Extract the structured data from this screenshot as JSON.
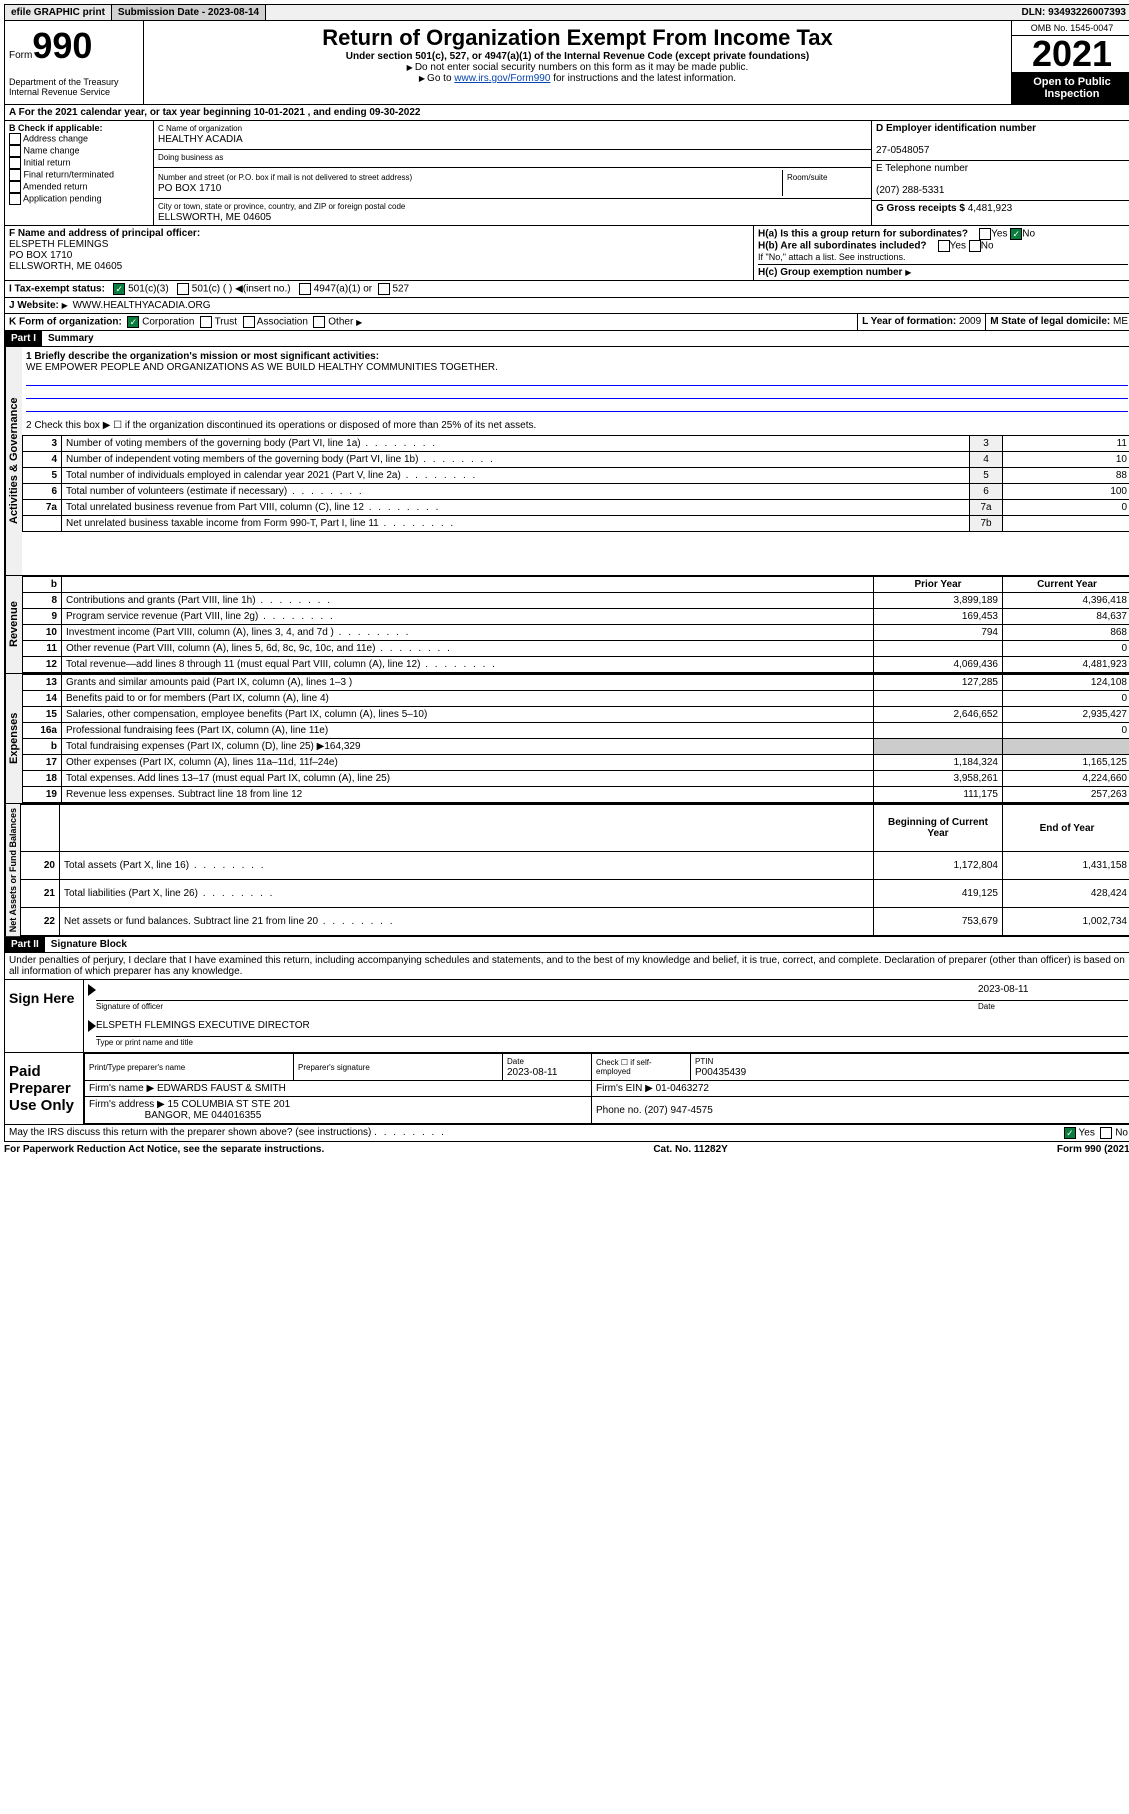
{
  "top_bar": {
    "efile": "efile GRAPHIC print",
    "submission_label": "Submission Date - 2023-08-14",
    "dln": "DLN: 93493226007393"
  },
  "header": {
    "form_prefix": "Form",
    "form_number": "990",
    "dept": "Department of the Treasury Internal Revenue Service",
    "title": "Return of Organization Exempt From Income Tax",
    "subtitle": "Under section 501(c), 527, or 4947(a)(1) of the Internal Revenue Code (except private foundations)",
    "note1": "Do not enter social security numbers on this form as it may be made public.",
    "note2_pre": "Go to ",
    "note2_link": "www.irs.gov/Form990",
    "note2_post": " for instructions and the latest information.",
    "omb": "OMB No. 1545-0047",
    "year": "2021",
    "open": "Open to Public Inspection"
  },
  "line_a": "For the 2021 calendar year, or tax year beginning 10-01-2021   , and ending 09-30-2022",
  "section_b": {
    "label": "B Check if applicable:",
    "items": [
      "Address change",
      "Name change",
      "Initial return",
      "Final return/terminated",
      "Amended return",
      "Application pending"
    ]
  },
  "section_c": {
    "name_label": "C Name of organization",
    "name": "HEALTHY ACADIA",
    "dba_label": "Doing business as",
    "addr_label": "Number and street (or P.O. box if mail is not delivered to street address)",
    "room_label": "Room/suite",
    "addr": "PO BOX 1710",
    "city_label": "City or town, state or province, country, and ZIP or foreign postal code",
    "city": "ELLSWORTH, ME  04605"
  },
  "section_d": {
    "ein_label": "D Employer identification number",
    "ein": "27-0548057",
    "phone_label": "E Telephone number",
    "phone": "(207) 288-5331",
    "gross_label": "G Gross receipts $",
    "gross": "4,481,923"
  },
  "section_f": {
    "label": "F  Name and address of principal officer:",
    "name": "ELSPETH FLEMINGS",
    "addr1": "PO BOX 1710",
    "addr2": "ELLSWORTH, ME  04605"
  },
  "section_h": {
    "a_label": "H(a)  Is this a group return for subordinates?",
    "yes": "Yes",
    "no": "No",
    "b_label": "H(b)  Are all subordinates included?",
    "b_note": "If \"No,\" attach a list. See instructions.",
    "c_label": "H(c)  Group exemption number"
  },
  "section_i": {
    "label": "I   Tax-exempt status:",
    "opts": [
      "501(c)(3)",
      "501(c) (  )",
      "(insert no.)",
      "4947(a)(1) or",
      "527"
    ]
  },
  "section_j": {
    "label": "J   Website:",
    "value": "WWW.HEALTHYACADIA.ORG"
  },
  "section_k": {
    "label": "K Form of organization:",
    "opts": [
      "Corporation",
      "Trust",
      "Association",
      "Other"
    ]
  },
  "section_l": {
    "label": "L Year of formation:",
    "value": "2009"
  },
  "section_m": {
    "label": "M State of legal domicile:",
    "value": "ME"
  },
  "part1": {
    "header": "Part I",
    "title": "Summary",
    "line1_label": "1  Briefly describe the organization's mission or most significant activities:",
    "line1_value": "WE EMPOWER PEOPLE AND ORGANIZATIONS AS WE BUILD HEALTHY COMMUNITIES TOGETHER.",
    "line2": "2   Check this box ▶ ☐  if the organization discontinued its operations or disposed of more than 25% of its net assets.",
    "vert_labels": [
      "Activities & Governance",
      "Revenue",
      "Expenses",
      "Net Assets or Fund Balances"
    ],
    "gov_rows": [
      {
        "n": "3",
        "t": "Number of voting members of the governing body (Part VI, line 1a)",
        "ln": "3",
        "v": "11"
      },
      {
        "n": "4",
        "t": "Number of independent voting members of the governing body (Part VI, line 1b)",
        "ln": "4",
        "v": "10"
      },
      {
        "n": "5",
        "t": "Total number of individuals employed in calendar year 2021 (Part V, line 2a)",
        "ln": "5",
        "v": "88"
      },
      {
        "n": "6",
        "t": "Total number of volunteers (estimate if necessary)",
        "ln": "6",
        "v": "100"
      },
      {
        "n": "7a",
        "t": "Total unrelated business revenue from Part VIII, column (C), line 12",
        "ln": "7a",
        "v": "0"
      },
      {
        "n": "",
        "t": "Net unrelated business taxable income from Form 990-T, Part I, line 11",
        "ln": "7b",
        "v": ""
      }
    ],
    "col_headers": {
      "b": "b",
      "prior": "Prior Year",
      "current": "Current Year"
    },
    "rev_rows": [
      {
        "n": "8",
        "t": "Contributions and grants (Part VIII, line 1h)",
        "p": "3,899,189",
        "c": "4,396,418"
      },
      {
        "n": "9",
        "t": "Program service revenue (Part VIII, line 2g)",
        "p": "169,453",
        "c": "84,637"
      },
      {
        "n": "10",
        "t": "Investment income (Part VIII, column (A), lines 3, 4, and 7d )",
        "p": "794",
        "c": "868"
      },
      {
        "n": "11",
        "t": "Other revenue (Part VIII, column (A), lines 5, 6d, 8c, 9c, 10c, and 11e)",
        "p": "",
        "c": "0"
      },
      {
        "n": "12",
        "t": "Total revenue—add lines 8 through 11 (must equal Part VIII, column (A), line 12)",
        "p": "4,069,436",
        "c": "4,481,923"
      }
    ],
    "exp_rows": [
      {
        "n": "13",
        "t": "Grants and similar amounts paid (Part IX, column (A), lines 1–3 )",
        "p": "127,285",
        "c": "124,108"
      },
      {
        "n": "14",
        "t": "Benefits paid to or for members (Part IX, column (A), line 4)",
        "p": "",
        "c": "0"
      },
      {
        "n": "15",
        "t": "Salaries, other compensation, employee benefits (Part IX, column (A), lines 5–10)",
        "p": "2,646,652",
        "c": "2,935,427"
      },
      {
        "n": "16a",
        "t": "Professional fundraising fees (Part IX, column (A), line 11e)",
        "p": "",
        "c": "0"
      },
      {
        "n": "b",
        "t": "Total fundraising expenses (Part IX, column (D), line 25) ▶164,329",
        "p": "",
        "c": "",
        "gray": true
      },
      {
        "n": "17",
        "t": "Other expenses (Part IX, column (A), lines 11a–11d, 11f–24e)",
        "p": "1,184,324",
        "c": "1,165,125"
      },
      {
        "n": "18",
        "t": "Total expenses. Add lines 13–17 (must equal Part IX, column (A), line 25)",
        "p": "3,958,261",
        "c": "4,224,660"
      },
      {
        "n": "19",
        "t": "Revenue less expenses. Subtract line 18 from line 12",
        "p": "111,175",
        "c": "257,263"
      }
    ],
    "net_headers": {
      "begin": "Beginning of Current Year",
      "end": "End of Year"
    },
    "net_rows": [
      {
        "n": "20",
        "t": "Total assets (Part X, line 16)",
        "p": "1,172,804",
        "c": "1,431,158"
      },
      {
        "n": "21",
        "t": "Total liabilities (Part X, line 26)",
        "p": "419,125",
        "c": "428,424"
      },
      {
        "n": "22",
        "t": "Net assets or fund balances. Subtract line 21 from line 20",
        "p": "753,679",
        "c": "1,002,734"
      }
    ]
  },
  "part2": {
    "header": "Part II",
    "title": "Signature Block",
    "declaration": "Under penalties of perjury, I declare that I have examined this return, including accompanying schedules and statements, and to the best of my knowledge and belief, it is true, correct, and complete. Declaration of preparer (other than officer) is based on all information of which preparer has any knowledge.",
    "sign_here": "Sign Here",
    "sig_officer": "Signature of officer",
    "sig_date": "2023-08-11",
    "date_label": "Date",
    "officer_name": "ELSPETH FLEMINGS  EXECUTIVE DIRECTOR",
    "name_title_label": "Type or print name and title",
    "paid_prep": "Paid Preparer Use Only",
    "prep_name_label": "Print/Type preparer's name",
    "prep_sig_label": "Preparer's signature",
    "prep_date_label": "Date",
    "prep_date": "2023-08-11",
    "check_if": "Check ☐ if self-employed",
    "ptin_label": "PTIN",
    "ptin": "P00435439",
    "firm_name_label": "Firm's name    ▶",
    "firm_name": "EDWARDS FAUST & SMITH",
    "firm_ein_label": "Firm's EIN ▶",
    "firm_ein": "01-0463272",
    "firm_addr_label": "Firm's address ▶",
    "firm_addr1": "15 COLUMBIA ST STE 201",
    "firm_addr2": "BANGOR, ME  044016355",
    "firm_phone_label": "Phone no.",
    "firm_phone": "(207) 947-4575",
    "discuss": "May the IRS discuss this return with the preparer shown above? (see instructions)",
    "yes": "Yes",
    "no": "No"
  },
  "footer": {
    "left": "For Paperwork Reduction Act Notice, see the separate instructions.",
    "center": "Cat. No. 11282Y",
    "right": "Form 990 (2021)"
  }
}
